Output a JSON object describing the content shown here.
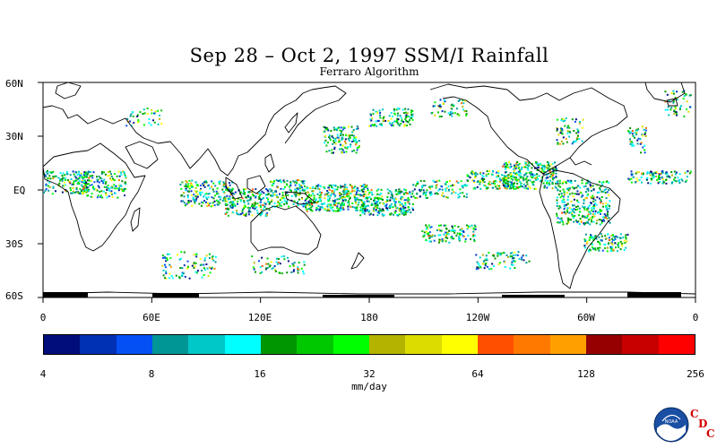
{
  "title": "Sep 28 – Oct 2, 1997 SSM/I Rainfall",
  "subtitle": "Ferraro Algorithm",
  "lat_labels": [
    "60N",
    "30N",
    "EQ",
    "30S",
    "60S"
  ],
  "lon_labels": [
    "0",
    "60E",
    "120E",
    "180",
    "120W",
    "60W",
    "0"
  ],
  "colorbar": {
    "colors": [
      "#000d7a",
      "#0030b4",
      "#0550f5",
      "#009696",
      "#00c8c8",
      "#00ffff",
      "#009600",
      "#00c800",
      "#00ff00",
      "#b4b400",
      "#dcdc00",
      "#ffff00",
      "#ff5000",
      "#ff7800",
      "#ffa000",
      "#960000",
      "#c80000",
      "#ff0000"
    ],
    "tick_labels": [
      "4",
      "8",
      "16",
      "32",
      "64",
      "128",
      "256"
    ],
    "units": "mm/day"
  },
  "logo": {
    "icon": "noaa-logo-icon",
    "letters": [
      "C",
      "D",
      "C"
    ],
    "letter_color": "#d40000",
    "text": "NOAA"
  }
}
